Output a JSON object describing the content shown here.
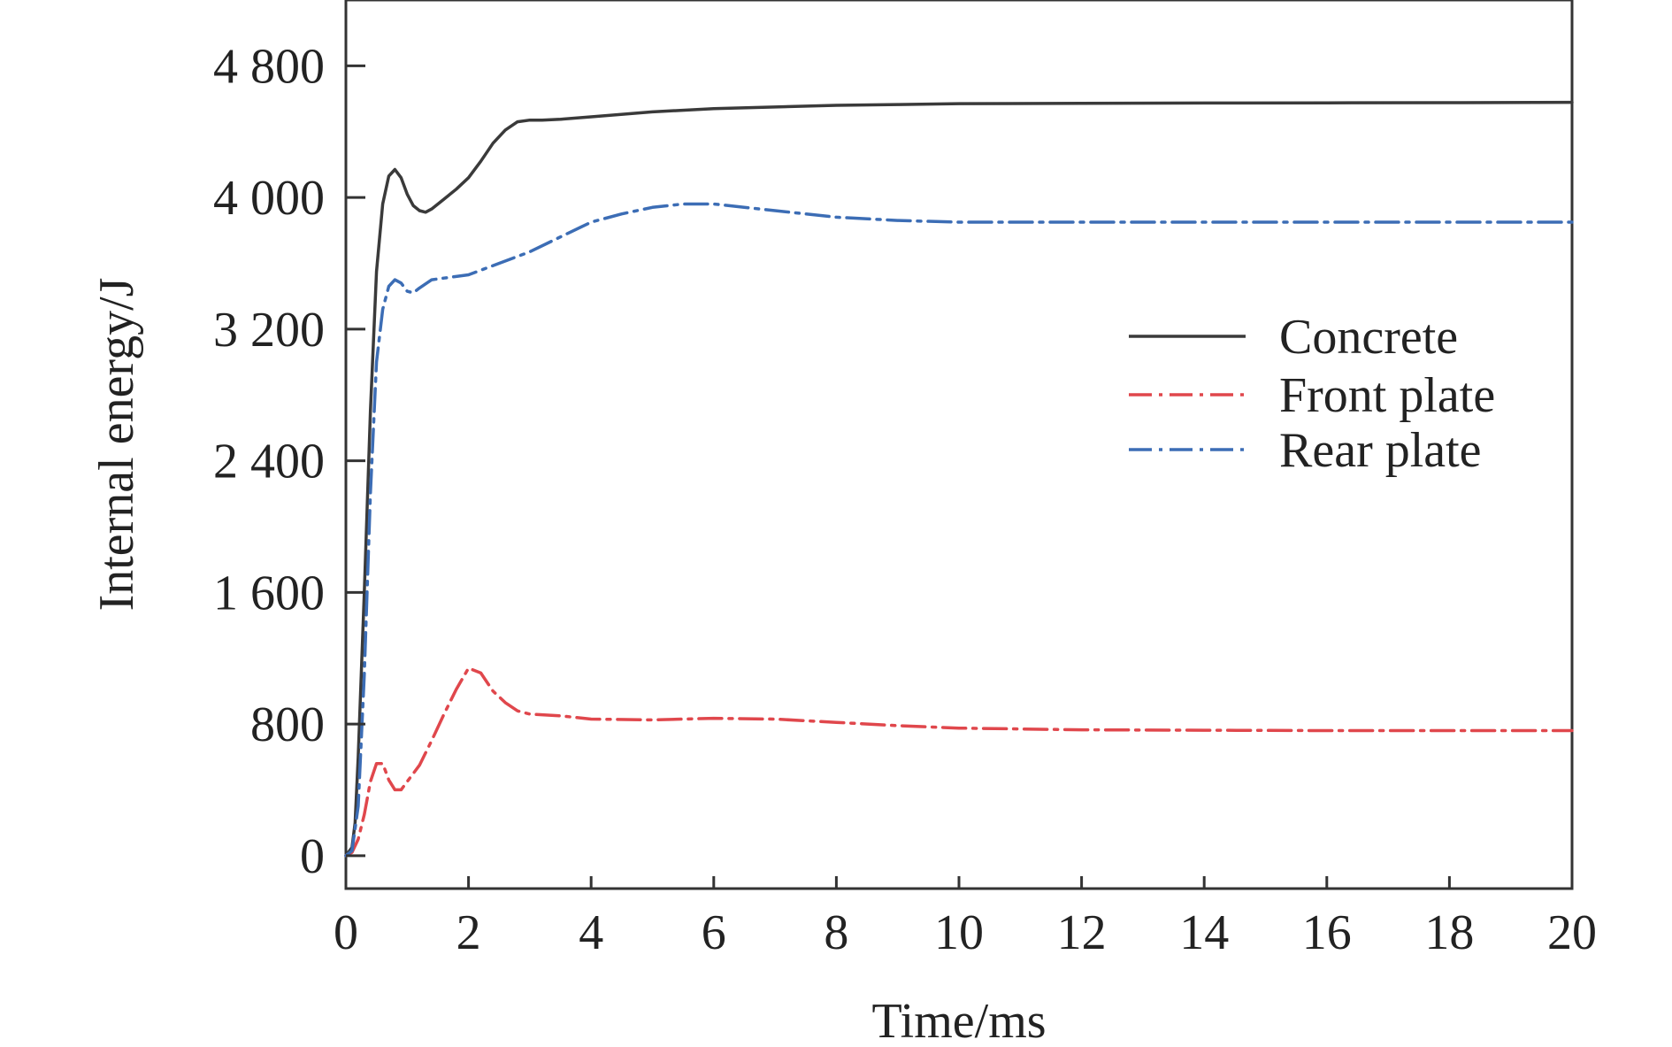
{
  "chart_data": {
    "type": "line",
    "title": "",
    "xlabel": "Time/ms",
    "ylabel": "Internal energy/J",
    "xlim": [
      0,
      20
    ],
    "ylim": [
      -200,
      5200
    ],
    "x_ticks": [
      0,
      2,
      4,
      6,
      8,
      10,
      12,
      14,
      16,
      18,
      20
    ],
    "x_tick_labels": [
      "0",
      "2",
      "4",
      "6",
      "8",
      "10",
      "12",
      "14",
      "16",
      "18",
      "20"
    ],
    "y_ticks": [
      0,
      800,
      1600,
      2400,
      3200,
      4000,
      4800
    ],
    "y_tick_labels": [
      "0",
      "800",
      "1 600",
      "2 400",
      "3 200",
      "4 000",
      "4 800"
    ],
    "grid": false,
    "legend_position": "right-center",
    "series": [
      {
        "name": "Concrete",
        "color": "#3a3a3a",
        "dash": "solid",
        "x": [
          0,
          0.1,
          0.15,
          0.2,
          0.3,
          0.4,
          0.5,
          0.6,
          0.7,
          0.8,
          0.9,
          1.0,
          1.1,
          1.2,
          1.3,
          1.4,
          1.6,
          1.8,
          2.0,
          2.2,
          2.4,
          2.6,
          2.8,
          3.0,
          3.2,
          3.5,
          4.0,
          5.0,
          6.0,
          7.0,
          8.0,
          9.0,
          10.0,
          12.0,
          14.0,
          16.0,
          18.0,
          20.0
        ],
        "y": [
          0,
          50,
          200,
          600,
          1600,
          2700,
          3550,
          3960,
          4130,
          4170,
          4120,
          4020,
          3950,
          3920,
          3910,
          3930,
          3990,
          4050,
          4120,
          4220,
          4330,
          4410,
          4460,
          4470,
          4470,
          4475,
          4490,
          4520,
          4540,
          4550,
          4560,
          4565,
          4570,
          4572,
          4574,
          4575,
          4576,
          4578
        ]
      },
      {
        "name": "Front plate",
        "color": "#e0474c",
        "dash": "26 8 4 8",
        "x": [
          0,
          0.1,
          0.2,
          0.3,
          0.4,
          0.5,
          0.6,
          0.7,
          0.8,
          0.9,
          1.0,
          1.2,
          1.4,
          1.6,
          1.8,
          2.0,
          2.2,
          2.4,
          2.6,
          2.8,
          3.0,
          3.5,
          4.0,
          5.0,
          6.0,
          7.0,
          8.0,
          9.0,
          10.0,
          12.0,
          14.0,
          16.0,
          18.0,
          20.0
        ],
        "y": [
          0,
          20,
          100,
          250,
          450,
          560,
          560,
          460,
          400,
          400,
          450,
          550,
          700,
          860,
          1010,
          1140,
          1110,
          1000,
          930,
          880,
          860,
          850,
          830,
          825,
          835,
          830,
          810,
          790,
          775,
          765,
          762,
          760,
          760,
          760
        ]
      },
      {
        "name": "Rear plate",
        "color": "#3c6db5",
        "dash": "26 8 4 8",
        "x": [
          0,
          0.1,
          0.2,
          0.3,
          0.4,
          0.5,
          0.6,
          0.7,
          0.8,
          0.9,
          1.0,
          1.1,
          1.2,
          1.4,
          1.6,
          1.8,
          2.0,
          2.5,
          3.0,
          3.5,
          4.0,
          4.5,
          5.0,
          5.5,
          6.0,
          7.0,
          8.0,
          9.0,
          10.0,
          12.0,
          14.0,
          16.0,
          18.0,
          20.0
        ],
        "y": [
          0,
          30,
          300,
          1100,
          2200,
          3000,
          3320,
          3460,
          3500,
          3480,
          3430,
          3420,
          3450,
          3500,
          3510,
          3520,
          3530,
          3600,
          3670,
          3760,
          3850,
          3900,
          3940,
          3960,
          3960,
          3920,
          3880,
          3860,
          3850,
          3850,
          3850,
          3850,
          3850,
          3850
        ]
      }
    ]
  }
}
